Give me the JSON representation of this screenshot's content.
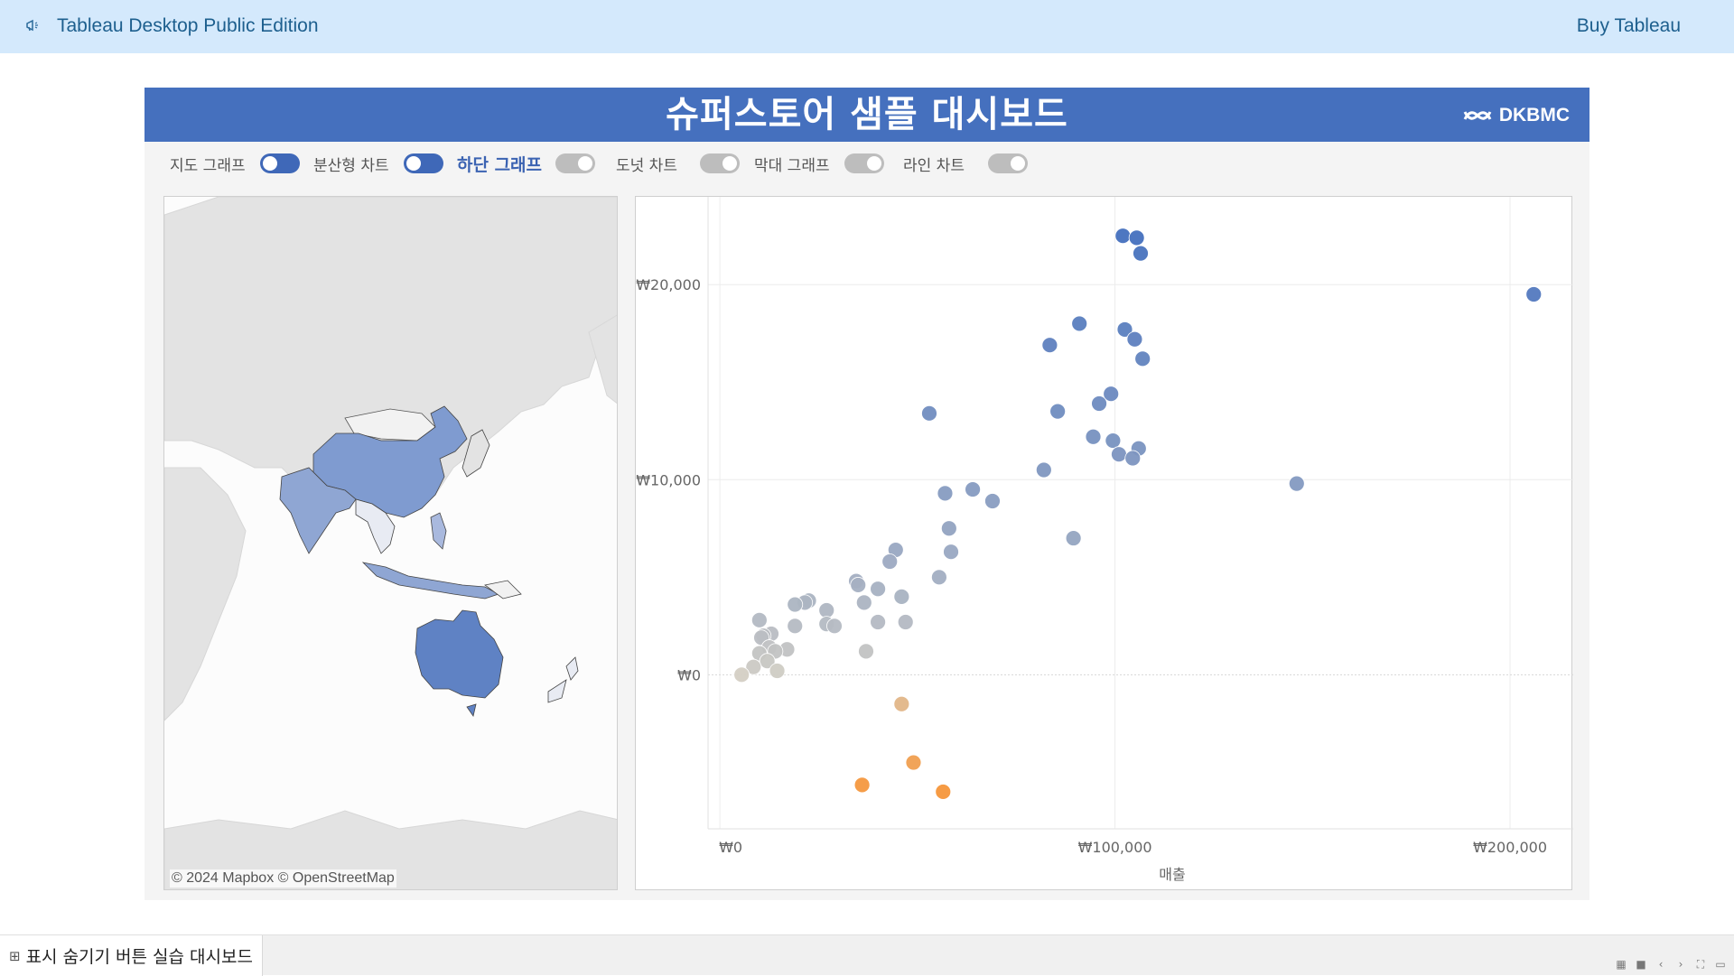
{
  "topbar": {
    "title": "Tableau Desktop Public Edition",
    "buy_label": "Buy Tableau",
    "icon": "megaphone-icon"
  },
  "dashboard": {
    "title": "슈퍼스토어 샘플 대시보드",
    "logo_text": "DKBMC",
    "header_color": "#4570be",
    "toggles": [
      {
        "label": "지도 그래프",
        "state": "on"
      },
      {
        "label": "분산형 차트",
        "state": "on"
      },
      {
        "label": "하단 그래프",
        "state": "off",
        "active": true
      },
      {
        "label": "도넛 차트",
        "state": "off"
      },
      {
        "label": "막대 그래프",
        "state": "off"
      },
      {
        "label": "라인 차트",
        "state": "off"
      }
    ]
  },
  "map": {
    "credit": "© 2024 Mapbox © OpenStreetMap",
    "region_color": "#4f74c0",
    "highlighted_regions": [
      "China",
      "India",
      "Australia",
      "Indonesia",
      "Philippines",
      "Japan",
      "New Zealand"
    ]
  },
  "chart_data": {
    "type": "scatter",
    "xlabel": "매출",
    "ylabel": "",
    "x_ticks": [
      "₩0",
      "₩100,000",
      "₩200,000"
    ],
    "y_ticks": [
      "₩20,000",
      "₩10,000",
      "₩0"
    ],
    "xlim": [
      -3000,
      216000
    ],
    "ylim": [
      -7900,
      24500
    ],
    "color_scale": {
      "negative": "#f5963a",
      "zero": "#d4cfc4",
      "positive": "#4570be"
    },
    "points": [
      {
        "x": 102000,
        "y": 22500
      },
      {
        "x": 105500,
        "y": 22400
      },
      {
        "x": 106500,
        "y": 21600
      },
      {
        "x": 206000,
        "y": 19500
      },
      {
        "x": 91000,
        "y": 18000
      },
      {
        "x": 83500,
        "y": 16900
      },
      {
        "x": 102500,
        "y": 17700
      },
      {
        "x": 105000,
        "y": 17200
      },
      {
        "x": 107000,
        "y": 16200
      },
      {
        "x": 53000,
        "y": 13400
      },
      {
        "x": 99000,
        "y": 14400
      },
      {
        "x": 96000,
        "y": 13900
      },
      {
        "x": 85500,
        "y": 13500
      },
      {
        "x": 94500,
        "y": 12200
      },
      {
        "x": 99500,
        "y": 12000
      },
      {
        "x": 106000,
        "y": 11600
      },
      {
        "x": 101000,
        "y": 11300
      },
      {
        "x": 104500,
        "y": 11100
      },
      {
        "x": 82000,
        "y": 10500
      },
      {
        "x": 146000,
        "y": 9800
      },
      {
        "x": 64000,
        "y": 9500
      },
      {
        "x": 57000,
        "y": 9300
      },
      {
        "x": 69000,
        "y": 8900
      },
      {
        "x": 58000,
        "y": 7500
      },
      {
        "x": 89500,
        "y": 7000
      },
      {
        "x": 58500,
        "y": 6300
      },
      {
        "x": 44500,
        "y": 6400
      },
      {
        "x": 43000,
        "y": 5800
      },
      {
        "x": 55500,
        "y": 5000
      },
      {
        "x": 34500,
        "y": 4800
      },
      {
        "x": 35000,
        "y": 4600
      },
      {
        "x": 40000,
        "y": 4400
      },
      {
        "x": 46000,
        "y": 4000
      },
      {
        "x": 22500,
        "y": 3800
      },
      {
        "x": 21500,
        "y": 3700
      },
      {
        "x": 36500,
        "y": 3700
      },
      {
        "x": 19000,
        "y": 3600
      },
      {
        "x": 27000,
        "y": 3300
      },
      {
        "x": 10000,
        "y": 2800
      },
      {
        "x": 40000,
        "y": 2700
      },
      {
        "x": 47000,
        "y": 2700
      },
      {
        "x": 27000,
        "y": 2600
      },
      {
        "x": 29000,
        "y": 2500
      },
      {
        "x": 19000,
        "y": 2500
      },
      {
        "x": 13000,
        "y": 2100
      },
      {
        "x": 11000,
        "y": 2000
      },
      {
        "x": 10500,
        "y": 1900
      },
      {
        "x": 12500,
        "y": 1400
      },
      {
        "x": 17000,
        "y": 1300
      },
      {
        "x": 37000,
        "y": 1200
      },
      {
        "x": 14000,
        "y": 1200
      },
      {
        "x": 10000,
        "y": 1100
      },
      {
        "x": 12000,
        "y": 700
      },
      {
        "x": 8500,
        "y": 400
      },
      {
        "x": 14500,
        "y": 200
      },
      {
        "x": 5500,
        "y": 0
      },
      {
        "x": 46000,
        "y": -1500
      },
      {
        "x": 49000,
        "y": -4500
      },
      {
        "x": 36000,
        "y": -5650
      },
      {
        "x": 56500,
        "y": -6000
      }
    ]
  },
  "tabbar": {
    "tab_label": "표시 숨기기 버튼 실습 대시보드",
    "tab_icon": "dashboard-icon"
  }
}
